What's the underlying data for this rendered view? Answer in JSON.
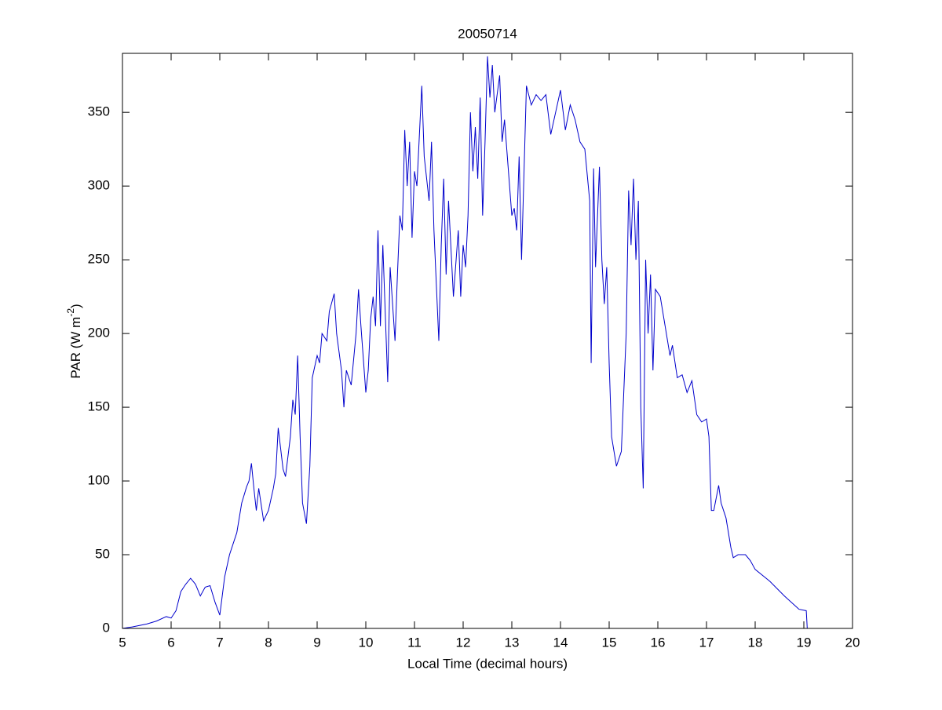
{
  "chart_data": {
    "type": "line",
    "title": "20050714",
    "xlabel": "Local Time (decimal hours)",
    "ylabel": [
      "PAR (W m",
      "-2",
      ")"
    ],
    "xlim": [
      5,
      20
    ],
    "xticks": [
      5,
      6,
      7,
      8,
      9,
      10,
      11,
      12,
      13,
      14,
      15,
      16,
      17,
      18,
      19,
      20
    ],
    "ylim": [
      0,
      390
    ],
    "yticks": [
      0,
      50,
      100,
      150,
      200,
      250,
      300,
      350
    ],
    "grid": false,
    "x": [
      5.0,
      5.2,
      5.5,
      5.7,
      5.9,
      6.0,
      6.1,
      6.2,
      6.3,
      6.4,
      6.5,
      6.6,
      6.7,
      6.8,
      6.9,
      7.0,
      7.1,
      7.2,
      7.35,
      7.45,
      7.55,
      7.6,
      7.65,
      7.7,
      7.75,
      7.8,
      7.9,
      8.0,
      8.1,
      8.15,
      8.2,
      8.3,
      8.35,
      8.45,
      8.5,
      8.55,
      8.6,
      8.65,
      8.7,
      8.78,
      8.85,
      8.9,
      9.0,
      9.05,
      9.1,
      9.2,
      9.25,
      9.35,
      9.4,
      9.5,
      9.55,
      9.6,
      9.7,
      9.8,
      9.85,
      9.9,
      10.0,
      10.05,
      10.1,
      10.15,
      10.2,
      10.25,
      10.3,
      10.35,
      10.45,
      10.5,
      10.6,
      10.65,
      10.7,
      10.75,
      10.8,
      10.85,
      10.9,
      10.95,
      11.0,
      11.05,
      11.15,
      11.2,
      11.3,
      11.35,
      11.4,
      11.5,
      11.55,
      11.6,
      11.65,
      11.7,
      11.8,
      11.9,
      11.95,
      12.0,
      12.05,
      12.1,
      12.15,
      12.2,
      12.25,
      12.3,
      12.35,
      12.4,
      12.45,
      12.5,
      12.55,
      12.6,
      12.65,
      12.75,
      12.8,
      12.85,
      13.0,
      13.05,
      13.1,
      13.15,
      13.2,
      13.3,
      13.4,
      13.5,
      13.6,
      13.7,
      13.8,
      13.9,
      14.0,
      14.1,
      14.2,
      14.3,
      14.4,
      14.5,
      14.6,
      14.63,
      14.68,
      14.72,
      14.8,
      14.85,
      14.9,
      14.95,
      15.0,
      15.05,
      15.15,
      15.25,
      15.35,
      15.4,
      15.45,
      15.5,
      15.55,
      15.6,
      15.65,
      15.7,
      15.75,
      15.8,
      15.85,
      15.9,
      15.95,
      16.05,
      16.15,
      16.25,
      16.3,
      16.4,
      16.5,
      16.6,
      16.7,
      16.8,
      16.9,
      17.0,
      17.05,
      17.1,
      17.15,
      17.25,
      17.3,
      17.4,
      17.5,
      17.55,
      17.65,
      17.8,
      17.9,
      18.0,
      18.3,
      18.6,
      18.9,
      19.05,
      19.07
    ],
    "series": [
      {
        "color": "#0000cc",
        "values": [
          0,
          1,
          3,
          5,
          8,
          7,
          12,
          25,
          30,
          34,
          30,
          22,
          28,
          29,
          18,
          9,
          35,
          50,
          65,
          85,
          96,
          100,
          112,
          95,
          80,
          95,
          73,
          80,
          95,
          105,
          136,
          108,
          103,
          130,
          155,
          145,
          185,
          130,
          85,
          71,
          110,
          170,
          185,
          180,
          200,
          195,
          215,
          227,
          200,
          175,
          150,
          175,
          165,
          200,
          230,
          205,
          160,
          175,
          210,
          225,
          205,
          270,
          205,
          260,
          167,
          245,
          195,
          240,
          280,
          270,
          338,
          300,
          330,
          265,
          310,
          300,
          368,
          320,
          290,
          330,
          270,
          195,
          260,
          305,
          240,
          290,
          225,
          270,
          225,
          260,
          245,
          280,
          350,
          310,
          340,
          305,
          360,
          280,
          330,
          388,
          360,
          382,
          350,
          375,
          330,
          345,
          280,
          285,
          270,
          320,
          250,
          368,
          355,
          362,
          358,
          362,
          335,
          350,
          365,
          338,
          355,
          345,
          330,
          325,
          290,
          180,
          312,
          245,
          313,
          250,
          220,
          245,
          180,
          130,
          110,
          120,
          200,
          297,
          260,
          305,
          250,
          290,
          150,
          95,
          250,
          200,
          240,
          175,
          230,
          225,
          205,
          185,
          192,
          170,
          172,
          160,
          168,
          145,
          140,
          142,
          130,
          80,
          80,
          97,
          85,
          75,
          55,
          48,
          50,
          50,
          46,
          40,
          32,
          22,
          13,
          12,
          0
        ]
      }
    ]
  }
}
